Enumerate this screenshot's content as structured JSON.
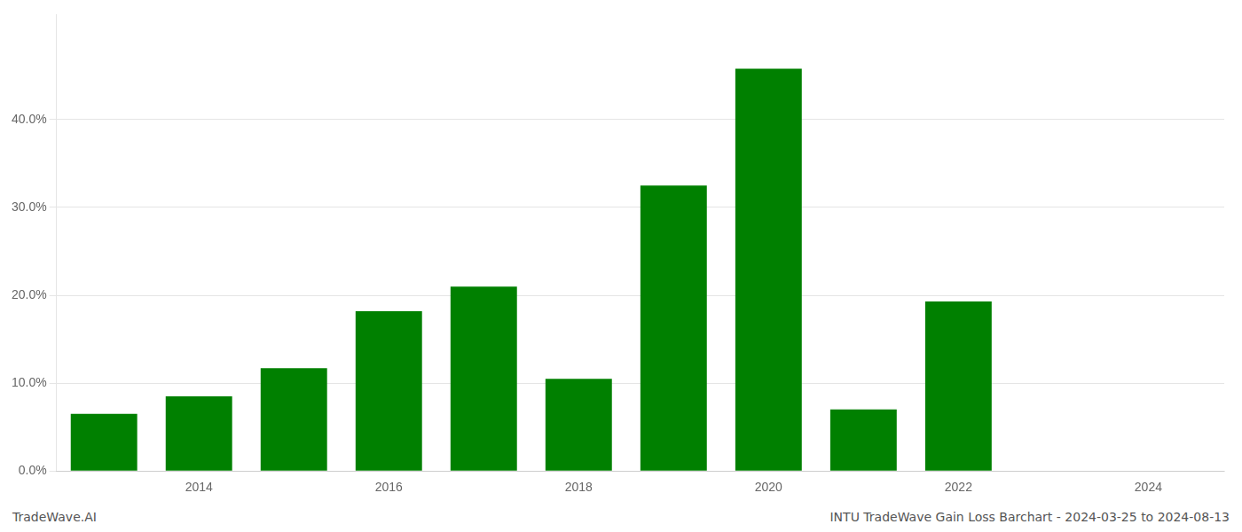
{
  "chart_data": {
    "type": "bar",
    "x": [
      2013,
      2014,
      2015,
      2016,
      2017,
      2018,
      2019,
      2020,
      2021,
      2022,
      2023,
      2024
    ],
    "values": [
      0.065,
      0.085,
      0.117,
      0.182,
      0.21,
      0.105,
      0.325,
      0.458,
      0.07,
      0.193,
      0.0,
      0.0
    ],
    "color": "#008000",
    "xlim": [
      2012.5,
      2024.8
    ],
    "xticks": [
      2014,
      2016,
      2018,
      2020,
      2022,
      2024
    ],
    "ylim": [
      0,
      0.52
    ],
    "yticks": [
      {
        "value": 0.0,
        "label": "0.0%"
      },
      {
        "value": 0.1,
        "label": "10.0%"
      },
      {
        "value": 0.2,
        "label": "20.0%"
      },
      {
        "value": 0.3,
        "label": "30.0%"
      },
      {
        "value": 0.4,
        "label": "40.0%"
      }
    ],
    "grid": true,
    "annotations": [
      "TradeWave.AI",
      "INTU TradeWave Gain Loss Barchart - 2024-03-25 to 2024-08-13"
    ]
  }
}
